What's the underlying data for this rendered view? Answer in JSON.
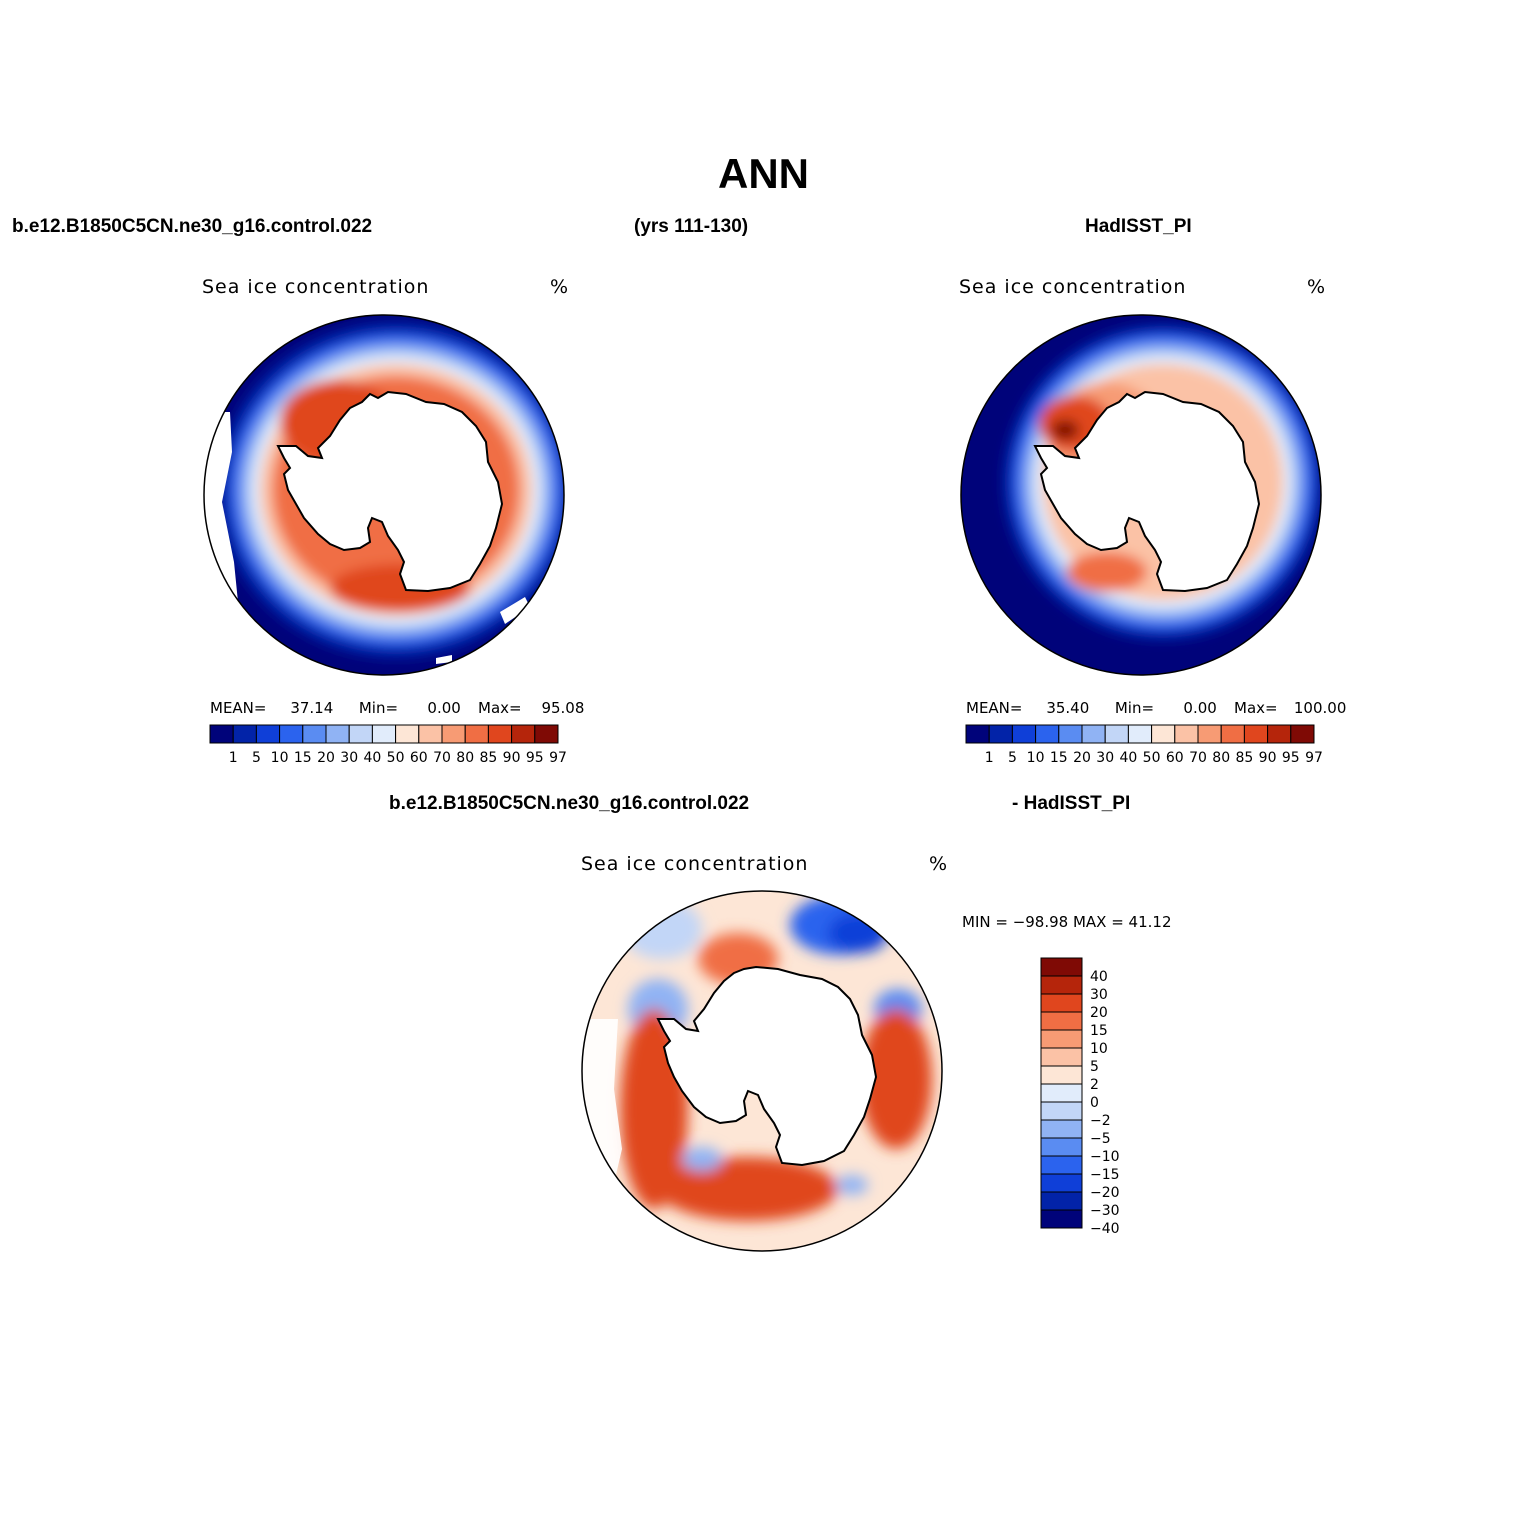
{
  "header": {
    "title": "ANN",
    "case_name": "b.e12.B1850C5CN.ne30_g16.control.022",
    "years": "(yrs 111-130)",
    "obs_name": "HadISST_PI",
    "diff_case": "b.e12.B1850C5CN.ne30_g16.control.022",
    "diff_obs": "- HadISST_PI"
  },
  "panels": {
    "model": {
      "title": "Sea ice concentration",
      "units": "%",
      "mean_label": "MEAN=",
      "mean": "37.14",
      "min_label": "Min=",
      "min": "0.00",
      "max_label": "Max=",
      "max": "95.08"
    },
    "obs": {
      "title": "Sea ice concentration",
      "units": "%",
      "mean_label": "MEAN=",
      "mean": "35.40",
      "min_label": "Min=",
      "min": "0.00",
      "max_label": "Max=",
      "max": "100.00"
    },
    "diff": {
      "title": "Sea ice concentration",
      "units": "%",
      "minmax": "MIN = −98.98  MAX =   41.12"
    }
  },
  "legend_abs": {
    "labels": [
      "1",
      "5",
      "10",
      "15",
      "20",
      "30",
      "40",
      "50",
      "60",
      "70",
      "80",
      "85",
      "90",
      "95",
      "97"
    ],
    "colors": [
      "#00037a",
      "#0223a8",
      "#0f3fd8",
      "#2b63ee",
      "#5a8cf2",
      "#90b3f4",
      "#c2d6f7",
      "#e1ecfb",
      "#fde6d6",
      "#fbc2a6",
      "#f79b74",
      "#f06e44",
      "#e0461e",
      "#b5250b",
      "#7f0a05"
    ]
  },
  "legend_diff": {
    "labels": [
      "40",
      "30",
      "20",
      "15",
      "10",
      "5",
      "2",
      "0",
      "−2",
      "−5",
      "−10",
      "−15",
      "−20",
      "−30",
      "−40"
    ],
    "colors": [
      "#7f0a05",
      "#b5250b",
      "#e0461e",
      "#f06e44",
      "#f79b74",
      "#fbc2a6",
      "#fde6d6",
      "#e1ecfb",
      "#c2d6f7",
      "#90b3f4",
      "#5a8cf2",
      "#2b63ee",
      "#0f3fd8",
      "#0223a8",
      "#00037a"
    ]
  }
}
